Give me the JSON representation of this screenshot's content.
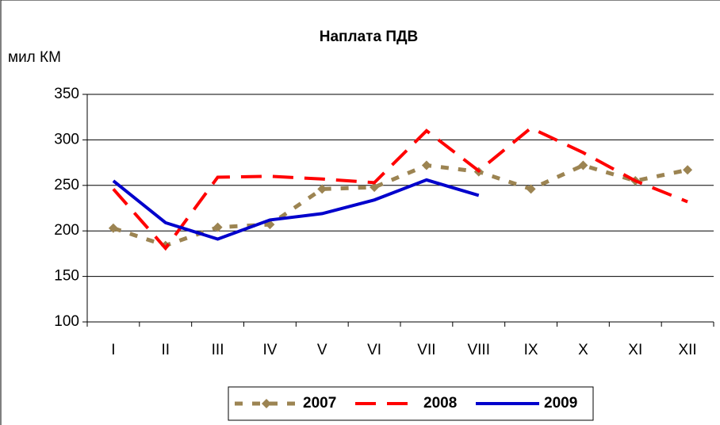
{
  "chart_data": {
    "type": "line",
    "title": "Наплата ПДВ",
    "y_label": "мил КМ",
    "categories": [
      "I",
      "II",
      "III",
      "IV",
      "V",
      "VI",
      "VII",
      "VIII",
      "IX",
      "X",
      "XI",
      "XII"
    ],
    "series": [
      {
        "name": "2007",
        "color": "#9c8452",
        "values": [
          203,
          184,
          204,
          207,
          246,
          248,
          272,
          265,
          246,
          272,
          255,
          267
        ]
      },
      {
        "name": "2008",
        "color": "#ff0000",
        "values": [
          246,
          181,
          259,
          260,
          257,
          253,
          310,
          266,
          313,
          286,
          255,
          232
        ]
      },
      {
        "name": "2009",
        "color": "#0000cc",
        "values": [
          255,
          209,
          191,
          212,
          219,
          234,
          256,
          239,
          null,
          null,
          null,
          null
        ]
      }
    ],
    "ylim": [
      100,
      350
    ],
    "yticks": [
      100,
      150,
      200,
      250,
      300,
      350
    ],
    "grid": true
  }
}
